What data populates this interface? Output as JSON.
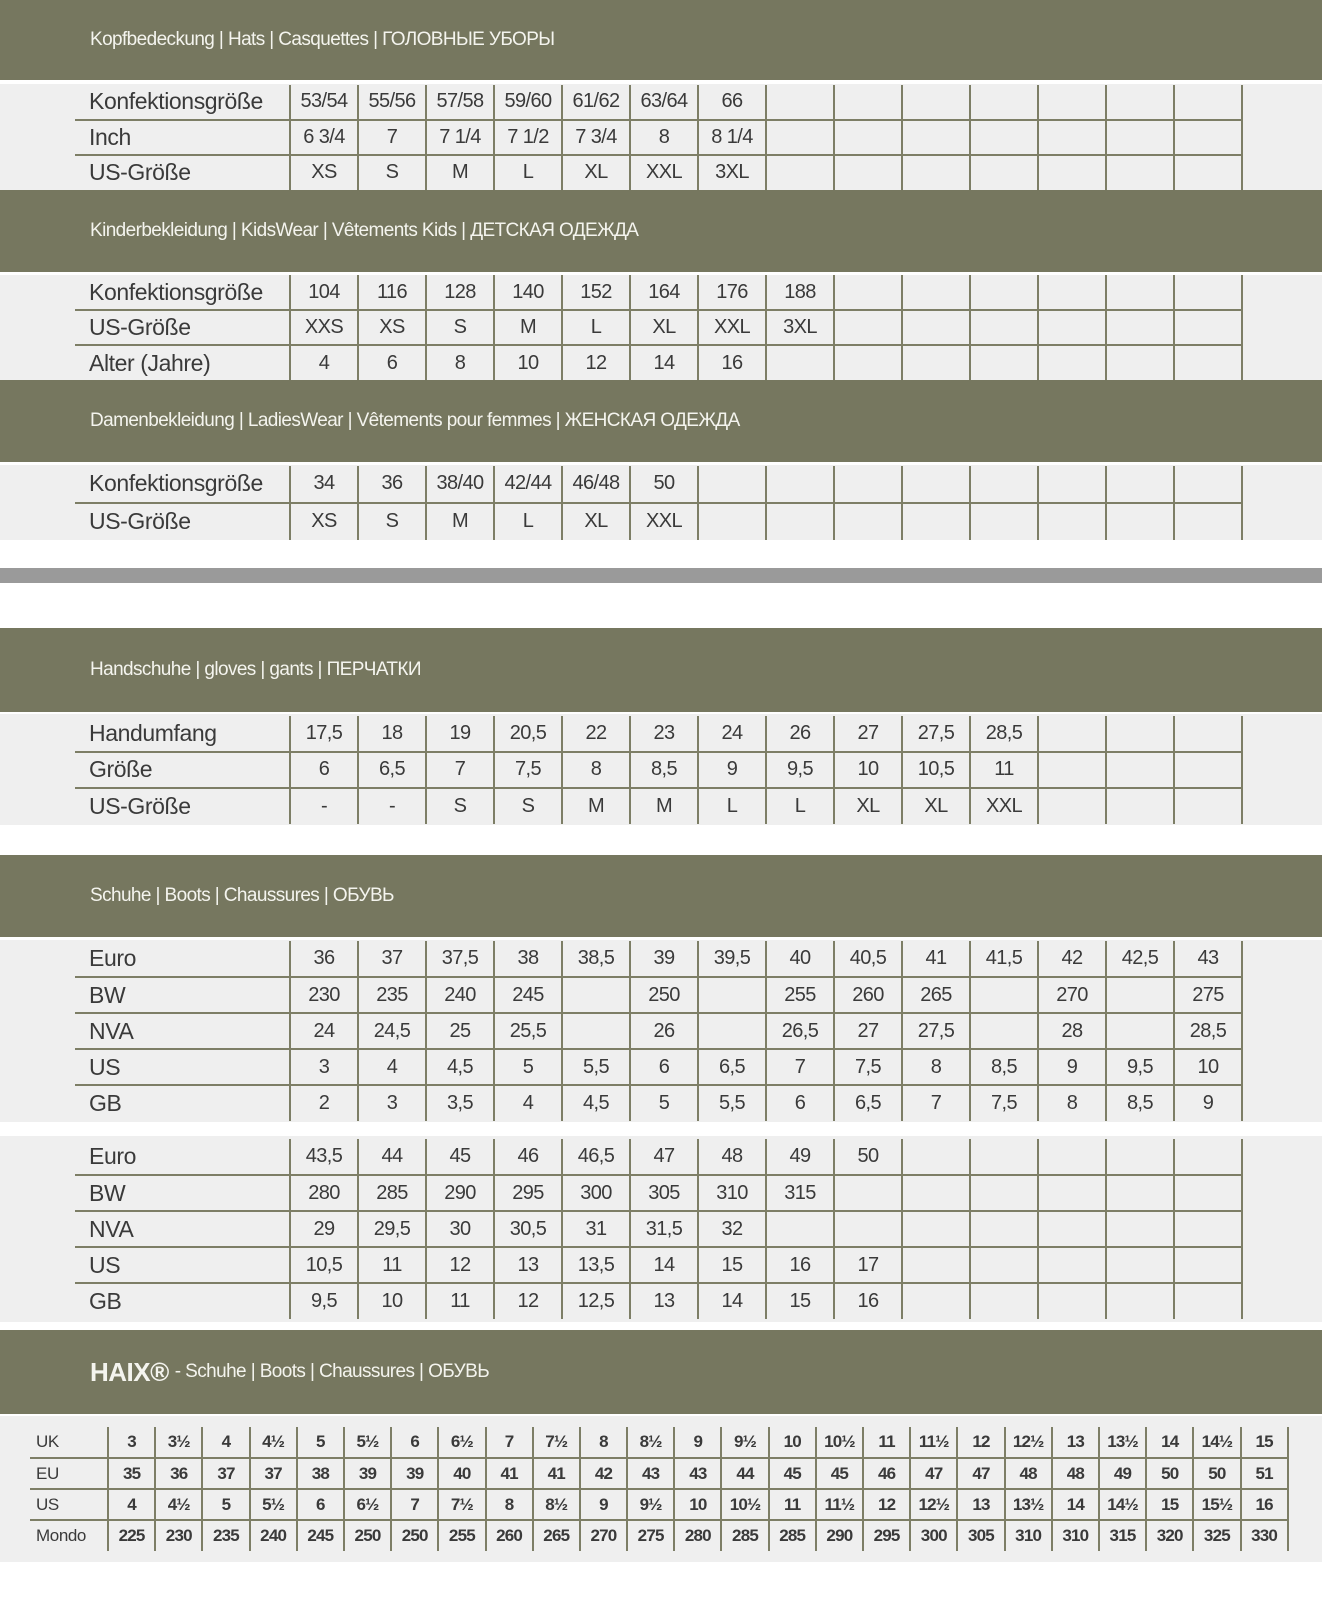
{
  "colors": {
    "header_bg": "#76775f",
    "table_bg": "#efefef",
    "grid_line": "#7d7e66",
    "separator": "#9a9a9a"
  },
  "sections": [
    {
      "title": "Kopfbedeckung | Hats | Casquettes | ГОЛОВНЫЕ УБОРЫ",
      "tables": [
        {
          "columns": 14,
          "rows": [
            {
              "label": "Konfektionsgröße",
              "values": [
                "53/54",
                "55/56",
                "57/58",
                "59/60",
                "61/62",
                "63/64",
                "66"
              ]
            },
            {
              "label": "Inch",
              "values": [
                "6 3/4",
                "7",
                "7 1/4",
                "7 1/2",
                "7 3/4",
                "8",
                "8 1/4"
              ]
            },
            {
              "label": "US-Größe",
              "values": [
                "XS",
                "S",
                "M",
                "L",
                "XL",
                "XXL",
                "3XL"
              ]
            }
          ]
        }
      ]
    },
    {
      "title": "Kinderbekleidung | KidsWear | Vêtements Kids | ДЕТСКАЯ ОДЕЖДА",
      "tables": [
        {
          "columns": 14,
          "rows": [
            {
              "label": "Konfektionsgröße",
              "values": [
                "104",
                "116",
                "128",
                "140",
                "152",
                "164",
                "176",
                "188"
              ]
            },
            {
              "label": "US-Größe",
              "values": [
                "XXS",
                "XS",
                "S",
                "M",
                "L",
                "XL",
                "XXL",
                "3XL"
              ]
            },
            {
              "label": "Alter (Jahre)",
              "values": [
                "4",
                "6",
                "8",
                "10",
                "12",
                "14",
                "16"
              ]
            }
          ]
        }
      ]
    },
    {
      "title": "Damenbekleidung | LadiesWear | Vêtements pour femmes | ЖЕНСКАЯ ОДЕЖДА",
      "tables": [
        {
          "columns": 14,
          "rows": [
            {
              "label": "Konfektionsgröße",
              "values": [
                "34",
                "36",
                "38/40",
                "42/44",
                "46/48",
                "50"
              ]
            },
            {
              "label": "US-Größe",
              "values": [
                "XS",
                "S",
                "M",
                "L",
                "XL",
                "XXL"
              ]
            }
          ]
        }
      ]
    },
    {
      "title": "Handschuhe | gloves | gants | ПЕРЧАТКИ",
      "tables": [
        {
          "columns": 14,
          "rows": [
            {
              "label": "Handumfang",
              "values": [
                "17,5",
                "18",
                "19",
                "20,5",
                "22",
                "23",
                "24",
                "26",
                "27",
                "27,5",
                "28,5"
              ]
            },
            {
              "label": "Größe",
              "values": [
                "6",
                "6,5",
                "7",
                "7,5",
                "8",
                "8,5",
                "9",
                "9,5",
                "10",
                "10,5",
                "11"
              ]
            },
            {
              "label": "US-Größe",
              "values": [
                "-",
                "-",
                "S",
                "S",
                "M",
                "M",
                "L",
                "L",
                "XL",
                "XL",
                "XXL"
              ]
            }
          ]
        }
      ]
    },
    {
      "title": "Schuhe | Boots | Chaussures | ОБУВЬ",
      "tables": [
        {
          "columns": 14,
          "rows": [
            {
              "label": "Euro",
              "values": [
                "36",
                "37",
                "37,5",
                "38",
                "38,5",
                "39",
                "39,5",
                "40",
                "40,5",
                "41",
                "41,5",
                "42",
                "42,5",
                "43"
              ]
            },
            {
              "label": "BW",
              "values": [
                "230",
                "235",
                "240",
                "245",
                "",
                "250",
                "",
                "255",
                "260",
                "265",
                "",
                "270",
                "",
                "275"
              ]
            },
            {
              "label": "NVA",
              "values": [
                "24",
                "24,5",
                "25",
                "25,5",
                "",
                "26",
                "",
                "26,5",
                "27",
                "27,5",
                "",
                "28",
                "",
                "28,5"
              ]
            },
            {
              "label": "US",
              "values": [
                "3",
                "4",
                "4,5",
                "5",
                "5,5",
                "6",
                "6,5",
                "7",
                "7,5",
                "8",
                "8,5",
                "9",
                "9,5",
                "10"
              ]
            },
            {
              "label": "GB",
              "values": [
                "2",
                "3",
                "3,5",
                "4",
                "4,5",
                "5",
                "5,5",
                "6",
                "6,5",
                "7",
                "7,5",
                "8",
                "8,5",
                "9"
              ]
            }
          ]
        },
        {
          "columns": 14,
          "rows": [
            {
              "label": "Euro",
              "values": [
                "43,5",
                "44",
                "45",
                "46",
                "46,5",
                "47",
                "48",
                "49",
                "50"
              ]
            },
            {
              "label": "BW",
              "values": [
                "280",
                "285",
                "290",
                "295",
                "300",
                "305",
                "310",
                "315"
              ]
            },
            {
              "label": "NVA",
              "values": [
                "29",
                "29,5",
                "30",
                "30,5",
                "31",
                "31,5",
                "32"
              ]
            },
            {
              "label": "US",
              "values": [
                "10,5",
                "11",
                "12",
                "13",
                "13,5",
                "14",
                "15",
                "16",
                "17"
              ]
            },
            {
              "label": "GB",
              "values": [
                "9,5",
                "10",
                "11",
                "12",
                "12,5",
                "13",
                "14",
                "15",
                "16"
              ]
            }
          ]
        }
      ]
    },
    {
      "brand": "HAIX®",
      "title": "- Schuhe | Boots | Chaussures | ОБУВЬ",
      "tables": [
        {
          "columns": 25,
          "rows": [
            {
              "label": "UK",
              "values": [
                "3",
                "3½",
                "4",
                "4½",
                "5",
                "5½",
                "6",
                "6½",
                "7",
                "7½",
                "8",
                "8½",
                "9",
                "9½",
                "10",
                "10½",
                "11",
                "11½",
                "12",
                "12½",
                "13",
                "13½",
                "14",
                "14½",
                "15"
              ]
            },
            {
              "label": "EU",
              "values": [
                "35",
                "36",
                "37",
                "37",
                "38",
                "39",
                "39",
                "40",
                "41",
                "41",
                "42",
                "43",
                "43",
                "44",
                "45",
                "45",
                "46",
                "47",
                "47",
                "48",
                "48",
                "49",
                "50",
                "50",
                "51"
              ]
            },
            {
              "label": "US",
              "values": [
                "4",
                "4½",
                "5",
                "5½",
                "6",
                "6½",
                "7",
                "7½",
                "8",
                "8½",
                "9",
                "9½",
                "10",
                "10½",
                "11",
                "11½",
                "12",
                "12½",
                "13",
                "13½",
                "14",
                "14½",
                "15",
                "15½",
                "16"
              ]
            },
            {
              "label": "Mondo",
              "values": [
                "225",
                "230",
                "235",
                "240",
                "245",
                "250",
                "250",
                "255",
                "260",
                "265",
                "270",
                "275",
                "280",
                "285",
                "285",
                "290",
                "295",
                "300",
                "305",
                "310",
                "310",
                "315",
                "320",
                "325",
                "330"
              ]
            }
          ]
        }
      ]
    }
  ]
}
